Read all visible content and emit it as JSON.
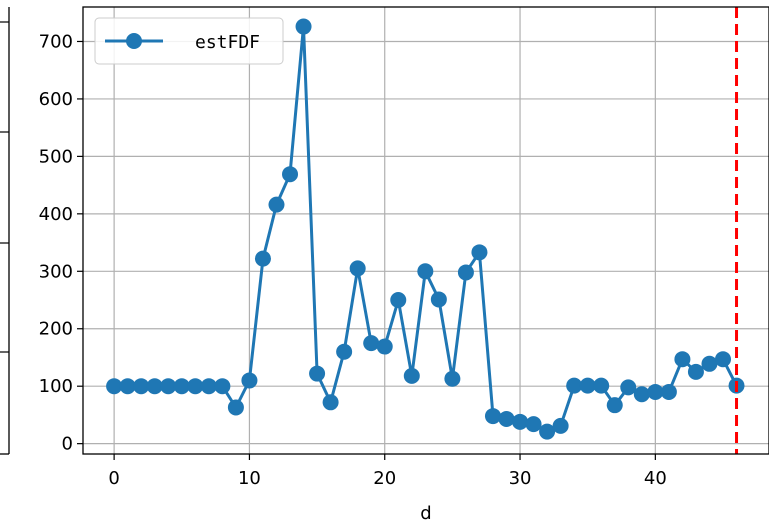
{
  "chart_data": {
    "type": "line",
    "title": "",
    "xlabel": "d",
    "ylabel": "",
    "xlim": [
      -2.3,
      48.4
    ],
    "ylim": [
      -18,
      760
    ],
    "x_ticks": [
      0,
      10,
      20,
      30,
      40
    ],
    "y_ticks": [
      0,
      100,
      200,
      300,
      400,
      500,
      600,
      700
    ],
    "grid": true,
    "legend_position": "upper-left",
    "series": [
      {
        "name": "estFDF",
        "color": "#1f77b4",
        "marker": "circle",
        "x": [
          0,
          1,
          2,
          3,
          4,
          5,
          6,
          7,
          8,
          9,
          10,
          11,
          12,
          13,
          14,
          15,
          16,
          17,
          18,
          19,
          20,
          21,
          22,
          23,
          24,
          25,
          26,
          27,
          28,
          29,
          30,
          31,
          32,
          33,
          34,
          35,
          36,
          37,
          38,
          39,
          40,
          41,
          42,
          43,
          44,
          45,
          46
        ],
        "values": [
          100,
          100,
          100,
          100,
          100,
          100,
          100,
          100,
          100,
          63,
          110,
          322,
          416,
          469,
          726,
          122,
          72,
          160,
          305,
          175,
          169,
          250,
          118,
          300,
          251,
          113,
          298,
          333,
          48,
          43,
          38,
          34,
          21,
          31,
          101,
          101,
          101,
          67,
          98,
          86,
          90,
          90,
          147,
          125,
          139,
          147,
          101
        ]
      }
    ],
    "vline": {
      "x": 46,
      "color": "#ff0000",
      "style": "dashed"
    }
  }
}
